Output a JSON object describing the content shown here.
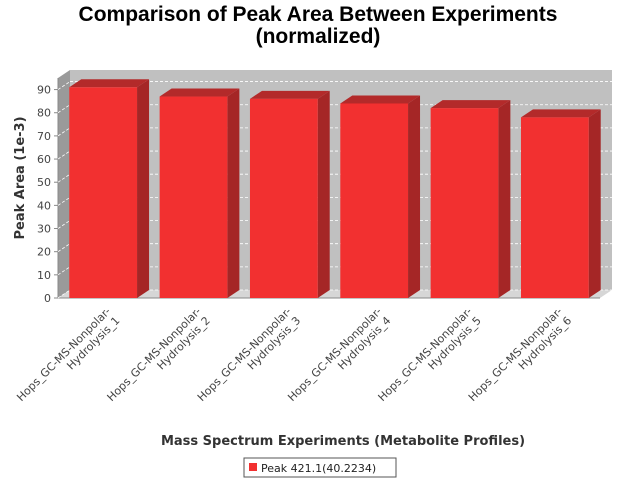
{
  "chart_data": {
    "type": "bar",
    "title_line1": "Comparison of Peak Area Between Experiments",
    "title_line2": "(normalized)",
    "xlabel": "Mass Spectrum Experiments (Metabolite Profiles)",
    "ylabel": "Peak Area (1e-3)",
    "ylim": [
      0,
      95
    ],
    "yticks": [
      0,
      10,
      20,
      30,
      40,
      50,
      60,
      70,
      80,
      90
    ],
    "grid": true,
    "legend_position": "bottom-center",
    "categories": [
      [
        "Hops_GC-MS-Nonpolar-",
        "Hydrolysis_1"
      ],
      [
        "Hops_GC-MS-Nonpolar-",
        "Hydrolysis_2"
      ],
      [
        "Hops_GC-MS-Nonpolar-",
        "Hydrolysis_3"
      ],
      [
        "Hops_GC-MS-Nonpolar-",
        "Hydrolysis_4"
      ],
      [
        "Hops_GC-MS-Nonpolar-",
        "Hydrolysis_5"
      ],
      [
        "Hops_GC-MS-Nonpolar-",
        "Hydrolysis_6"
      ]
    ],
    "series": [
      {
        "name": "Peak 421.1(40.2234)",
        "color": "#f23030",
        "values": [
          91,
          87,
          86,
          84,
          82,
          78
        ]
      }
    ]
  }
}
